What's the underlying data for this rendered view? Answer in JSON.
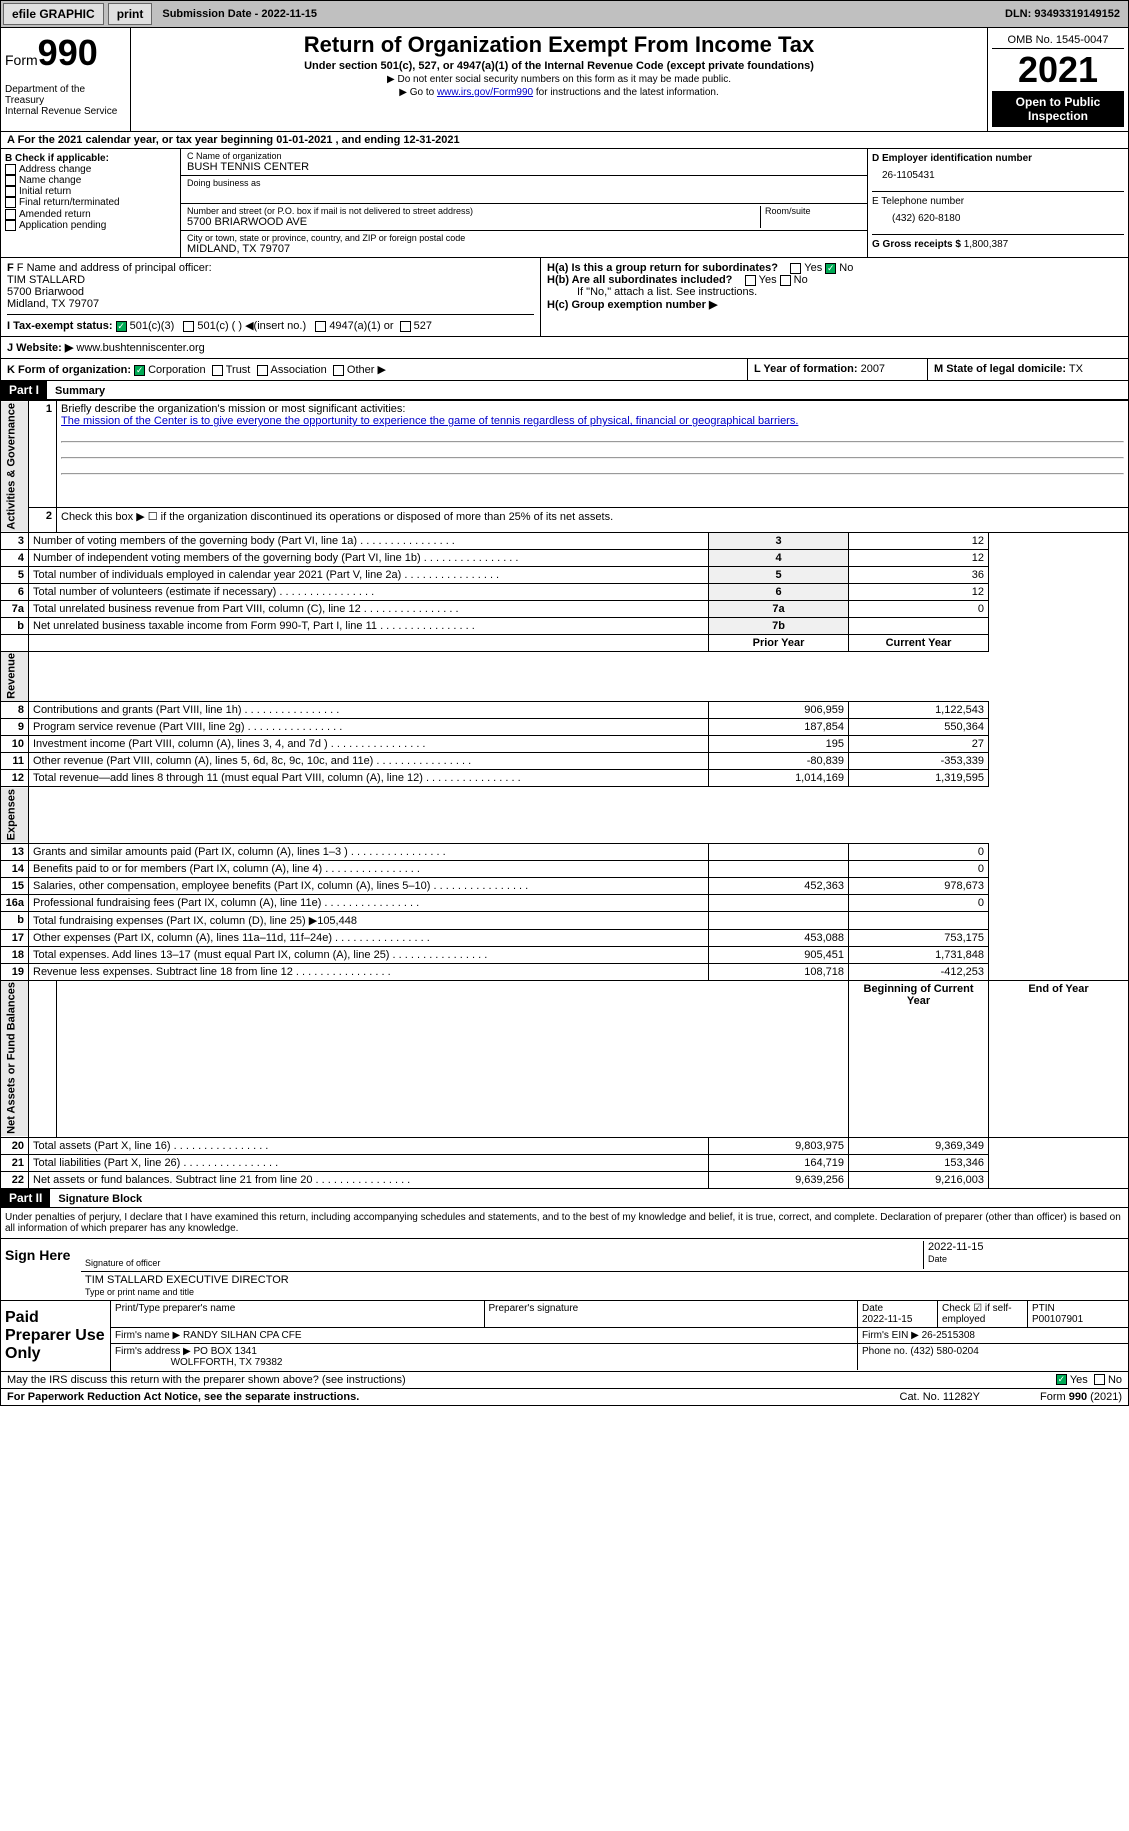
{
  "topbar": {
    "efile": "efile GRAPHIC",
    "print": "print",
    "submission": "Submission Date - 2022-11-15",
    "dln": "DLN: 93493319149152"
  },
  "header": {
    "form_label": "Form",
    "form_num": "990",
    "dept": "Department of the Treasury",
    "irs": "Internal Revenue Service",
    "title": "Return of Organization Exempt From Income Tax",
    "subtitle": "Under section 501(c), 527, or 4947(a)(1) of the Internal Revenue Code (except private foundations)",
    "instr1": "▶ Do not enter social security numbers on this form as it may be made public.",
    "instr2_pre": "▶ Go to ",
    "instr2_link": "www.irs.gov/Form990",
    "instr2_post": " for instructions and the latest information.",
    "omb": "OMB No. 1545-0047",
    "year": "2021",
    "inspect": "Open to Public Inspection"
  },
  "rowA": "A For the 2021 calendar year, or tax year beginning 01-01-2021   , and ending 12-31-2021",
  "colB": {
    "label": "B Check if applicable:",
    "items": [
      "Address change",
      "Name change",
      "Initial return",
      "Final return/terminated",
      "Amended return",
      "Application pending"
    ]
  },
  "colC": {
    "name_label": "C Name of organization",
    "name": "BUSH TENNIS CENTER",
    "dba_label": "Doing business as",
    "dba": "",
    "addr_label": "Number and street (or P.O. box if mail is not delivered to street address)",
    "room_label": "Room/suite",
    "addr": "5700 BRIARWOOD AVE",
    "city_label": "City or town, state or province, country, and ZIP or foreign postal code",
    "city": "MIDLAND, TX  79707"
  },
  "colD": {
    "ein_label": "D Employer identification number",
    "ein": "26-1105431",
    "phone_label": "E Telephone number",
    "phone": "(432) 620-8180",
    "gross_label": "G Gross receipts $",
    "gross": "1,800,387"
  },
  "rowF": {
    "label": "F Name and address of principal officer:",
    "name": "TIM STALLARD",
    "addr1": "5700 Briarwood",
    "addr2": "Midland, TX  79707",
    "ha": "H(a)  Is this a group return for subordinates?",
    "hb": "H(b)  Are all subordinates included?",
    "hc": "H(c)  Group exemption number ▶",
    "hnote": "If \"No,\" attach a list. See instructions.",
    "yes": "Yes",
    "no": "No"
  },
  "rowI": {
    "label": "I   Tax-exempt status:",
    "o1": "501(c)(3)",
    "o2": "501(c) (  ) ◀(insert no.)",
    "o3": "4947(a)(1) or",
    "o4": "527"
  },
  "rowJ": {
    "label": "J  Website: ▶",
    "val": "www.bushtenniscenter.org"
  },
  "rowK": {
    "label": "K Form of organization:",
    "o1": "Corporation",
    "o2": "Trust",
    "o3": "Association",
    "o4": "Other ▶",
    "l_label": "L Year of formation:",
    "l_val": "2007",
    "m_label": "M State of legal domicile:",
    "m_val": "TX"
  },
  "part1": {
    "hdr": "Part I",
    "title": "Summary",
    "q1": "Briefly describe the organization's mission or most significant activities:",
    "mission": "The mission of the Center is to give everyone the opportunity to experience the game of tennis regardless of physical, financial or geographical barriers.",
    "q2": "Check this box ▶ ☐  if the organization discontinued its operations or disposed of more than 25% of its net assets.",
    "lines": [
      {
        "n": "3",
        "t": "Number of voting members of the governing body (Part VI, line 1a)",
        "box": "3",
        "v": "12"
      },
      {
        "n": "4",
        "t": "Number of independent voting members of the governing body (Part VI, line 1b)",
        "box": "4",
        "v": "12"
      },
      {
        "n": "5",
        "t": "Total number of individuals employed in calendar year 2021 (Part V, line 2a)",
        "box": "5",
        "v": "36"
      },
      {
        "n": "6",
        "t": "Total number of volunteers (estimate if necessary)",
        "box": "6",
        "v": "12"
      },
      {
        "n": "7a",
        "t": "Total unrelated business revenue from Part VIII, column (C), line 12",
        "box": "7a",
        "v": "0"
      },
      {
        "n": "b",
        "t": "Net unrelated business taxable income from Form 990-T, Part I, line 11",
        "box": "7b",
        "v": ""
      }
    ],
    "prior": "Prior Year",
    "current": "Current Year",
    "rev": [
      {
        "n": "8",
        "t": "Contributions and grants (Part VIII, line 1h)",
        "p": "906,959",
        "c": "1,122,543"
      },
      {
        "n": "9",
        "t": "Program service revenue (Part VIII, line 2g)",
        "p": "187,854",
        "c": "550,364"
      },
      {
        "n": "10",
        "t": "Investment income (Part VIII, column (A), lines 3, 4, and 7d )",
        "p": "195",
        "c": "27"
      },
      {
        "n": "11",
        "t": "Other revenue (Part VIII, column (A), lines 5, 6d, 8c, 9c, 10c, and 11e)",
        "p": "-80,839",
        "c": "-353,339"
      },
      {
        "n": "12",
        "t": "Total revenue—add lines 8 through 11 (must equal Part VIII, column (A), line 12)",
        "p": "1,014,169",
        "c": "1,319,595"
      }
    ],
    "exp": [
      {
        "n": "13",
        "t": "Grants and similar amounts paid (Part IX, column (A), lines 1–3 )",
        "p": "",
        "c": "0"
      },
      {
        "n": "14",
        "t": "Benefits paid to or for members (Part IX, column (A), line 4)",
        "p": "",
        "c": "0"
      },
      {
        "n": "15",
        "t": "Salaries, other compensation, employee benefits (Part IX, column (A), lines 5–10)",
        "p": "452,363",
        "c": "978,673"
      },
      {
        "n": "16a",
        "t": "Professional fundraising fees (Part IX, column (A), line 11e)",
        "p": "",
        "c": "0"
      },
      {
        "n": "b",
        "t": "Total fundraising expenses (Part IX, column (D), line 25) ▶105,448",
        "p": "",
        "c": "",
        "shade": true
      },
      {
        "n": "17",
        "t": "Other expenses (Part IX, column (A), lines 11a–11d, 11f–24e)",
        "p": "453,088",
        "c": "753,175"
      },
      {
        "n": "18",
        "t": "Total expenses. Add lines 13–17 (must equal Part IX, column (A), line 25)",
        "p": "905,451",
        "c": "1,731,848"
      },
      {
        "n": "19",
        "t": "Revenue less expenses. Subtract line 18 from line 12",
        "p": "108,718",
        "c": "-412,253"
      }
    ],
    "begin": "Beginning of Current Year",
    "end": "End of Year",
    "net": [
      {
        "n": "20",
        "t": "Total assets (Part X, line 16)",
        "p": "9,803,975",
        "c": "9,369,349"
      },
      {
        "n": "21",
        "t": "Total liabilities (Part X, line 26)",
        "p": "164,719",
        "c": "153,346"
      },
      {
        "n": "22",
        "t": "Net assets or fund balances. Subtract line 21 from line 20",
        "p": "9,639,256",
        "c": "9,216,003"
      }
    ],
    "tabs": {
      "ag": "Activities & Governance",
      "rev": "Revenue",
      "exp": "Expenses",
      "net": "Net Assets or Fund Balances"
    }
  },
  "part2": {
    "hdr": "Part II",
    "title": "Signature Block",
    "decl": "Under penalties of perjury, I declare that I have examined this return, including accompanying schedules and statements, and to the best of my knowledge and belief, it is true, correct, and complete. Declaration of preparer (other than officer) is based on all information of which preparer has any knowledge.",
    "sign_here": "Sign Here",
    "sig_officer": "Signature of officer",
    "sig_date": "2022-11-15",
    "date_label": "Date",
    "name": "TIM STALLARD  EXECUTIVE DIRECTOR",
    "name_label": "Type or print name and title"
  },
  "preparer": {
    "label": "Paid Preparer Use Only",
    "pname_label": "Print/Type preparer's name",
    "psig_label": "Preparer's signature",
    "pdate_label": "Date",
    "pdate": "2022-11-15",
    "check_label": "Check ☑ if self-employed",
    "ptin_label": "PTIN",
    "ptin": "P00107901",
    "firm_label": "Firm's name  ▶",
    "firm": "RANDY SILHAN CPA CFE",
    "ein_label": "Firm's EIN ▶",
    "ein": "26-2515308",
    "addr_label": "Firm's address ▶",
    "addr1": "PO BOX 1341",
    "addr2": "WOLFFORTH, TX  79382",
    "phone_label": "Phone no.",
    "phone": "(432) 580-0204"
  },
  "footer": {
    "discuss": "May the IRS discuss this return with the preparer shown above? (see instructions)",
    "yes": "Yes",
    "no": "No",
    "pra": "For Paperwork Reduction Act Notice, see the separate instructions.",
    "cat": "Cat. No. 11282Y",
    "form": "Form 990 (2021)"
  }
}
